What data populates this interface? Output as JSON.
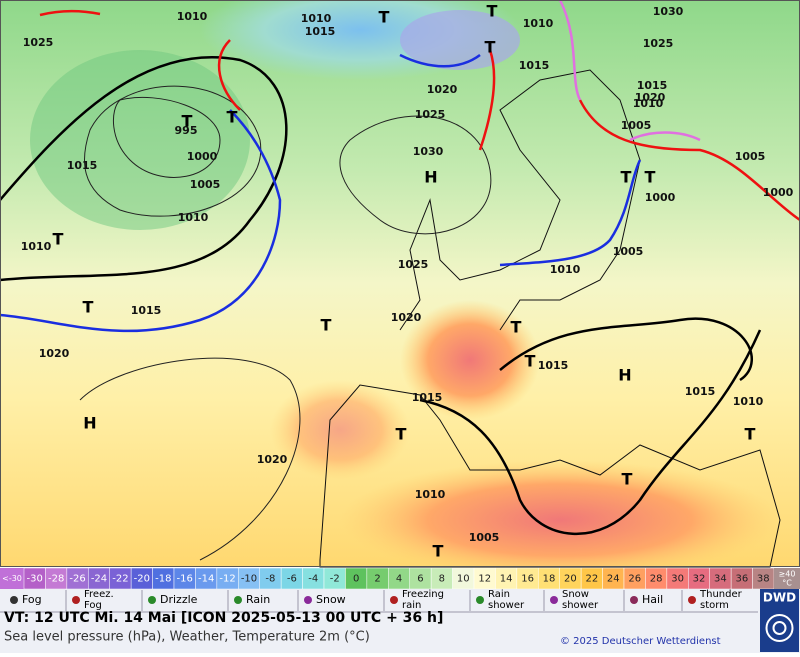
{
  "map": {
    "pressure_labels": [
      "1010",
      "1010",
      "1015",
      "1010",
      "1030",
      "1025",
      "1025",
      "1015",
      "1020",
      "1020",
      "1015",
      "995",
      "1025",
      "1010",
      "1005",
      "1000",
      "1030",
      "1005",
      "1015",
      "1005",
      "1000",
      "1000",
      "1010",
      "1010",
      "1005",
      "1025",
      "1010",
      "1015",
      "1020",
      "1020",
      "1015",
      "1015",
      "1015",
      "1010",
      "1020",
      "1010",
      "1005"
    ],
    "centers": [
      "T",
      "T",
      "T",
      "T",
      "T",
      "H",
      "T",
      "T",
      "T",
      "T",
      "T",
      "T",
      "T",
      "H",
      "H",
      "T",
      "T",
      "T",
      "T"
    ]
  },
  "temperature_scale": {
    "below_label": "<-30",
    "values": [
      -30,
      -28,
      -26,
      -24,
      -22,
      -20,
      -18,
      -16,
      -14,
      -12,
      -10,
      -8,
      -6,
      -4,
      -2,
      0,
      2,
      4,
      6,
      8,
      10,
      12,
      14,
      16,
      18,
      20,
      22,
      24,
      26,
      28,
      30,
      32,
      34,
      36,
      38
    ],
    "colors": [
      "#b460c8",
      "#c47ad4",
      "#a070d4",
      "#8a66d2",
      "#7a62d6",
      "#5a60d8",
      "#5070e0",
      "#5c86e8",
      "#6a9aee",
      "#78aef2",
      "#86c0f4",
      "#80ccee",
      "#7cd6e6",
      "#86e0e0",
      "#90e8d8",
      "#5ec25e",
      "#76cc6e",
      "#92d888",
      "#aee2a0",
      "#c8ecb8",
      "#f2f8dc",
      "#fffad0",
      "#fff3b2",
      "#ffea92",
      "#ffe074",
      "#ffd45c",
      "#ffc648",
      "#ffb450",
      "#ffa060",
      "#ff8c6c",
      "#f47a78",
      "#e66c80",
      "#d66c7c",
      "#c66e76",
      "#b88484"
    ],
    "above_label": "≥40",
    "unit": "°C",
    "below_color": "#c070d8",
    "above_color": "#a89090"
  },
  "legend": [
    "Fog",
    "Freez. Fog",
    "Drizzle",
    "Rain",
    "Snow",
    "Freezing rain",
    "Rain shower",
    "Snow shower",
    "Hail",
    "Thunder storm"
  ],
  "footer": {
    "valid_time": "VT: 12 UTC Mi.  14 Mai [ICON 2025-05-13  00 UTC + 36 h]",
    "description": "Sea level pressure (hPa), Weather, Temperature 2m (°C)",
    "copyright": "© 2025 Deutscher Wetterdienst",
    "logo": "DWD"
  }
}
